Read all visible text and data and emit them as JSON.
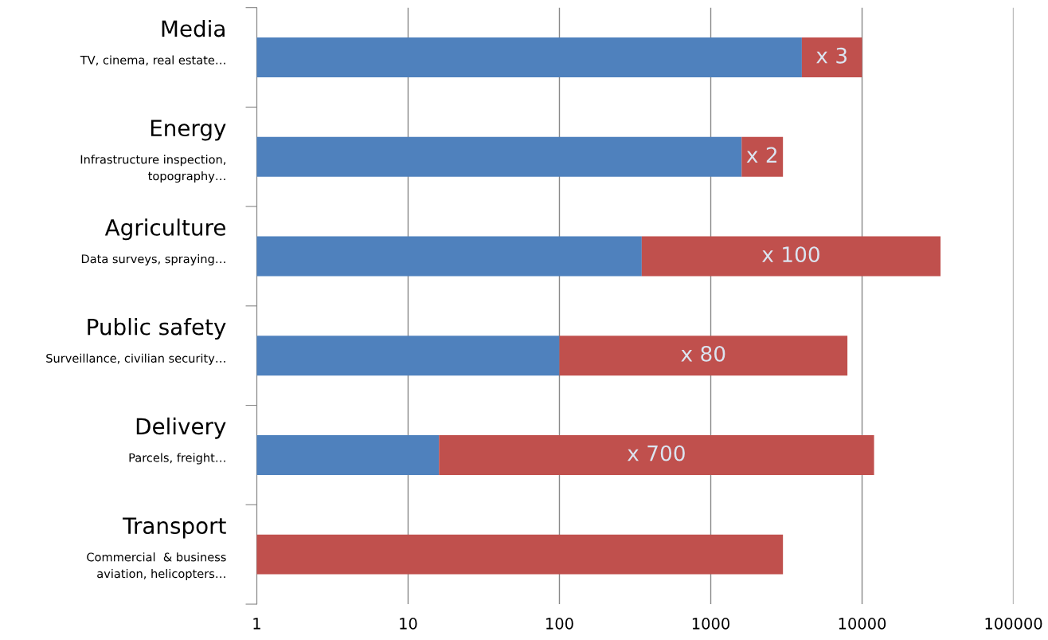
{
  "chart_data": {
    "type": "bar",
    "orientation": "horizontal",
    "stacked": true,
    "log": "x",
    "categories": [
      "Media\nTV, cinema, real estate…",
      "Energy\nInfrastructure inspection,\ntopography…",
      "Agriculture\nData surveys, spraying…",
      "Public safety\nSurveillance, civilian security…",
      "Delivery\nParcels, freight…",
      "Transport\nCommercial  & business\naviation, helicopters…"
    ],
    "series": [
      {
        "color": "#4f81bd",
        "values": [
          4000,
          1600,
          350,
          100,
          16,
          null
        ]
      },
      {
        "color": "#c0504d",
        "values": [
          6000,
          1400,
          32650,
          7900,
          11984,
          3000
        ],
        "value_labels": [
          "x 3",
          "x 2",
          "x 100",
          "x 80",
          "x 700",
          null
        ]
      }
    ],
    "xlim": [
      1,
      100000
    ],
    "xticks": [
      1,
      10,
      100,
      1000,
      10000,
      100000
    ],
    "grid": "x",
    "legend": false
  }
}
